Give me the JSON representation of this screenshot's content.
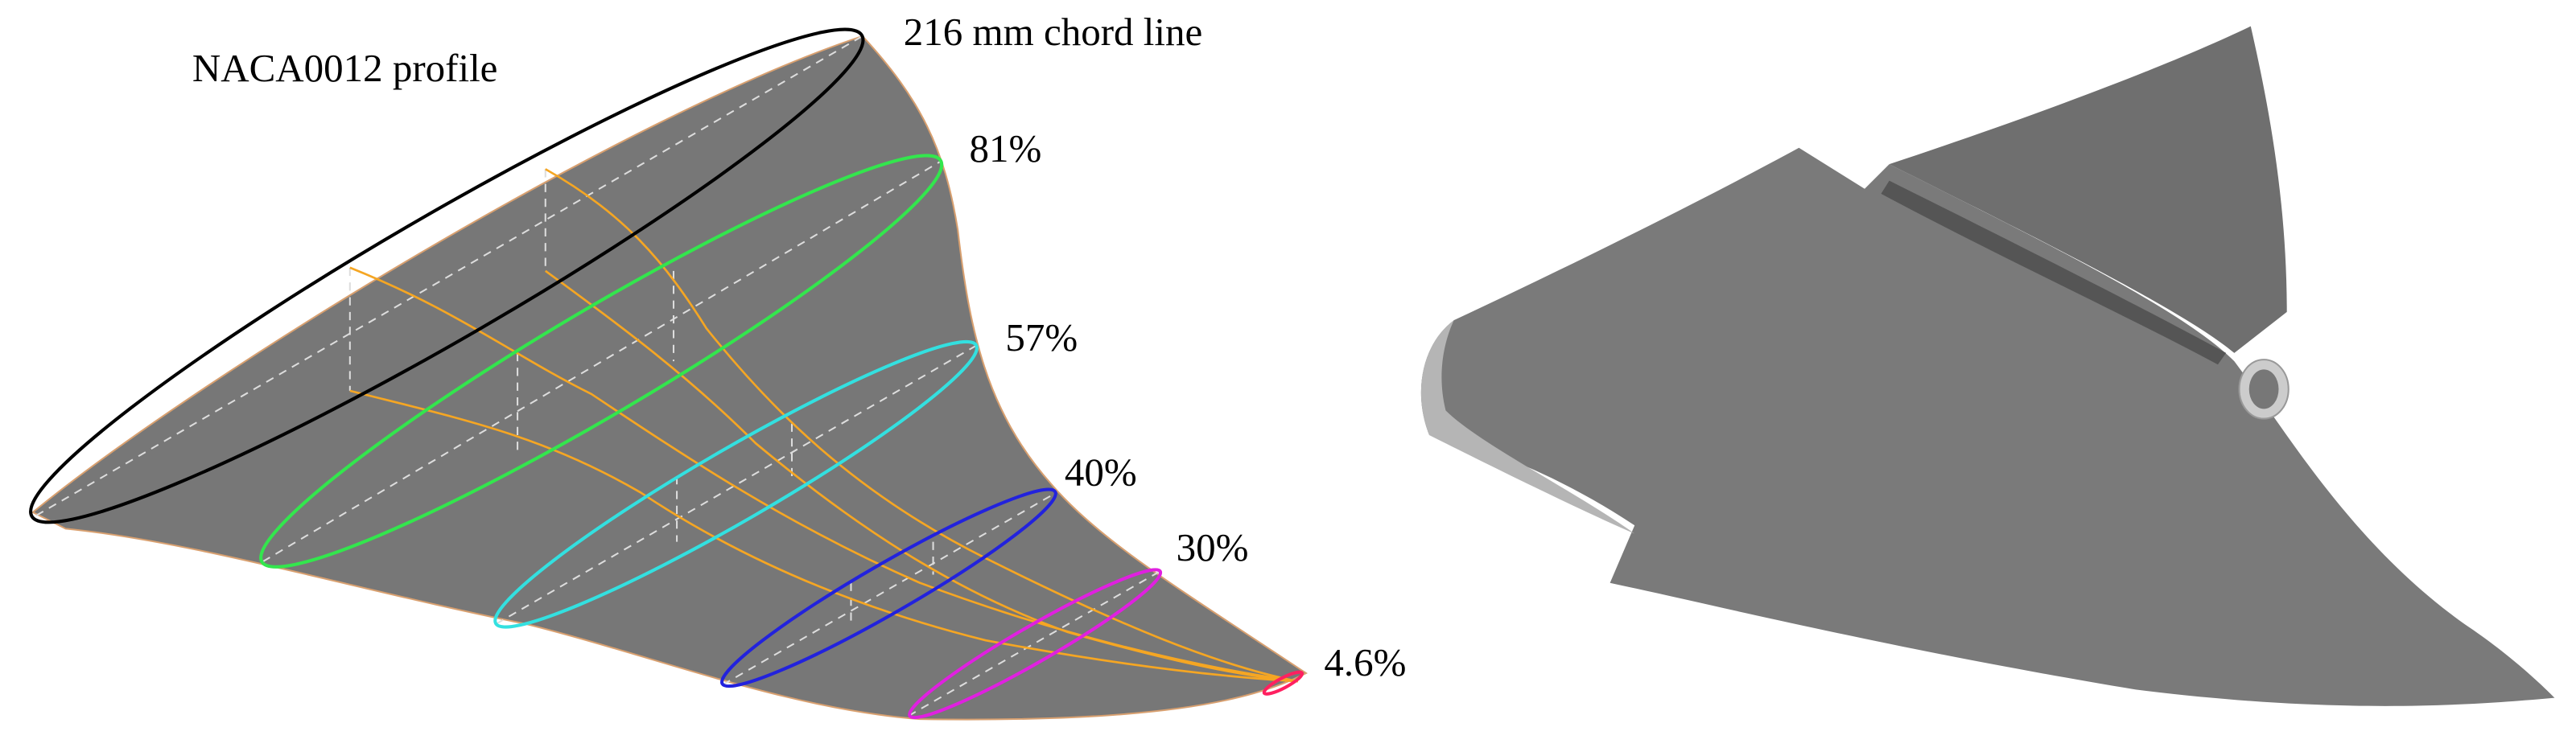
{
  "labels": {
    "profile": "NACA0012 profile",
    "chord": "216 mm chord line"
  },
  "sections": [
    {
      "label": "81%"
    },
    {
      "label": "57%"
    },
    {
      "label": "40%"
    },
    {
      "label": "30%"
    },
    {
      "label": "4.6%"
    }
  ]
}
